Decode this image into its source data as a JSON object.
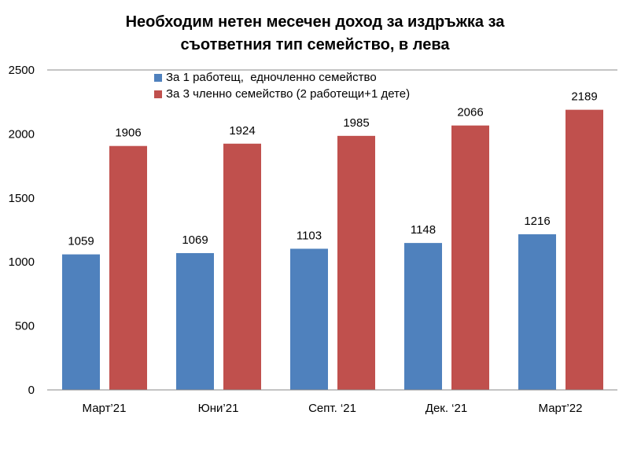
{
  "chart_data": {
    "type": "bar",
    "title_line1": "Необходим нетен месечен доход за издръжка за",
    "title_line2": "съответния тип семейство, в лева",
    "categories": [
      "Март’21",
      "Юни’21",
      "Септ. ‘21",
      "Дек. ‘21",
      "Март’22"
    ],
    "series": [
      {
        "name": "За 1 работещ,  едночленно семейство",
        "color": "#4F81BD",
        "values": [
          1059,
          1069,
          1103,
          1148,
          1216
        ]
      },
      {
        "name": "За 3 членно семейство (2 работещи+1 дете)",
        "color": "#C0504D",
        "values": [
          1906,
          1924,
          1985,
          2066,
          2189
        ]
      }
    ],
    "ylim": [
      0,
      2500
    ],
    "yticks": [
      "0",
      "500",
      "1000",
      "1500",
      "2000",
      "2500"
    ],
    "xlabel": "",
    "ylabel": "",
    "legend": "top-center"
  }
}
